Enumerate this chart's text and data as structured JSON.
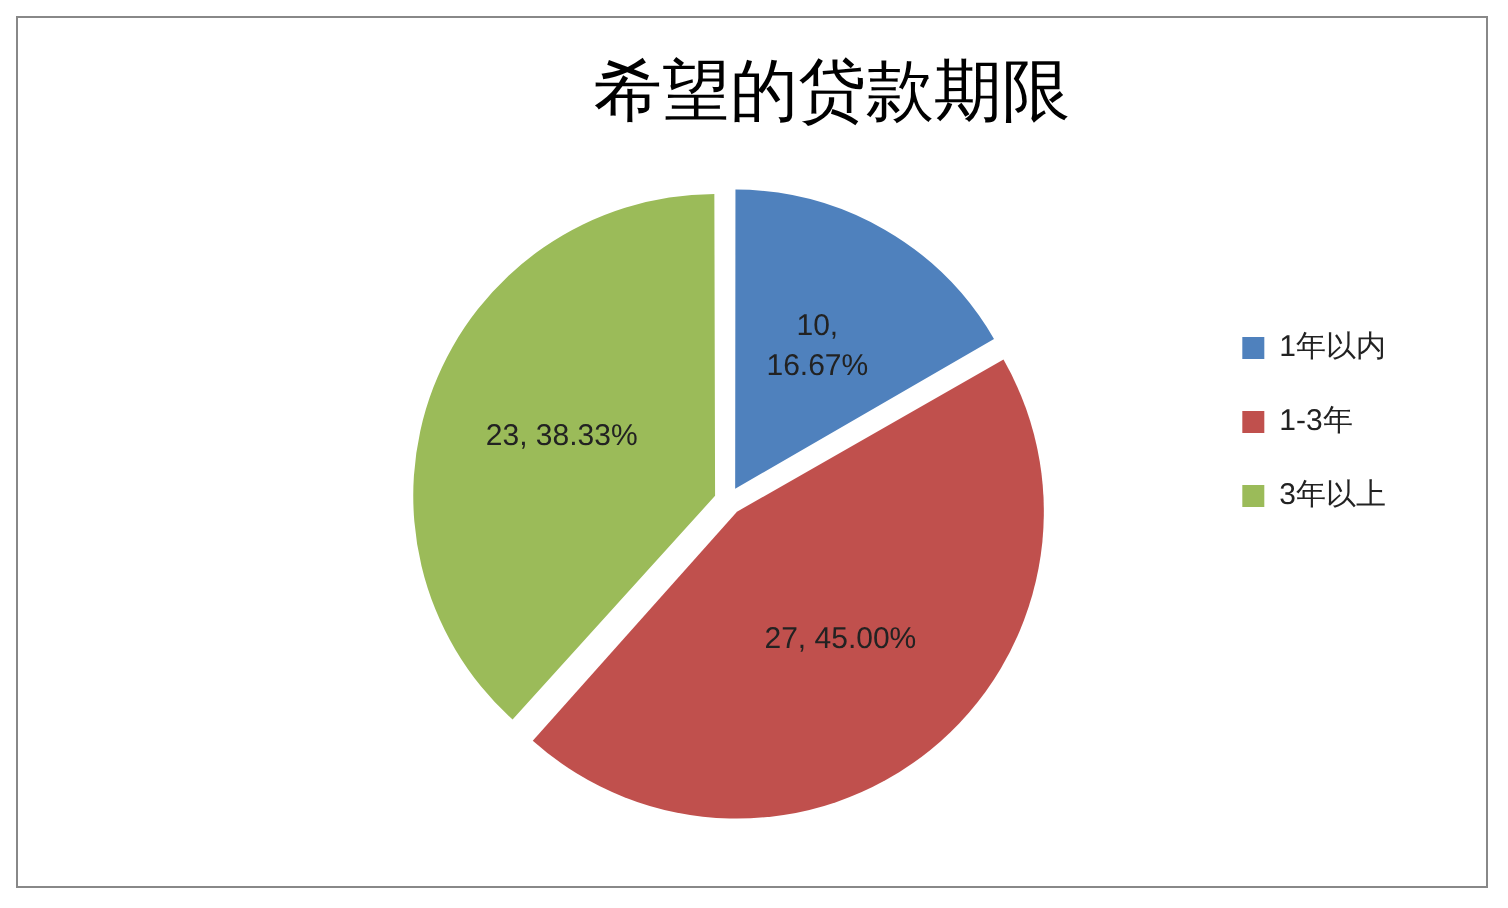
{
  "chart_data": {
    "type": "pie",
    "title": "希望的贷款期限",
    "categories": [
      "1年以内",
      "1-3年",
      "3年以上"
    ],
    "values": [
      10,
      27,
      23
    ],
    "colors": [
      "#4f81bd",
      "#c0504d",
      "#9bbb59"
    ],
    "value_labels": [
      "10, 16.67%",
      "27, 45.00%",
      "23, 38.33%"
    ],
    "legend": "right"
  }
}
